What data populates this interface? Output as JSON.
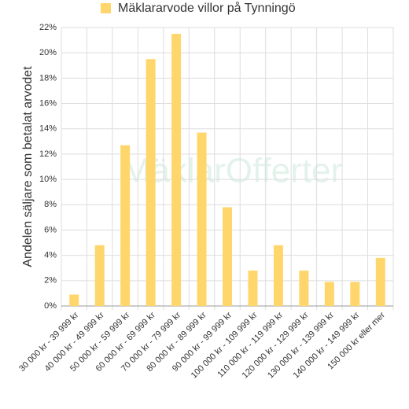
{
  "chart_data": {
    "type": "bar",
    "y_label": "Andelen säljare som betalat arvodet",
    "watermark": "MäklarOfferter",
    "categories": [
      "30 000 kr - 39 999 kr",
      "40 000 kr - 49 999 kr",
      "50 000 kr - 59 999 kr",
      "60 000 kr - 69 999 kr",
      "70 000 kr - 79 999 kr",
      "80 000 kr - 89 999 kr",
      "90 000 kr - 99 999 kr",
      "100 000 kr - 109 999 kr",
      "110 000 kr - 119 999 kr",
      "120 000 kr - 129 999 kr",
      "130 000 kr - 139 999 kr",
      "140 000 kr - 149 999 kr",
      "150 000 kr eller mer"
    ],
    "series": [
      {
        "name": "Mäklararvode villor på Tynningö",
        "color": "#ffd66b",
        "values": [
          0.9,
          4.8,
          12.7,
          19.5,
          21.5,
          13.7,
          7.8,
          2.8,
          4.8,
          2.8,
          1.9,
          1.9,
          3.8
        ]
      }
    ],
    "ylim": [
      0,
      22
    ],
    "yticks": [
      {
        "value": 0,
        "label": "0%"
      },
      {
        "value": 2,
        "label": "2%"
      },
      {
        "value": 4,
        "label": "4%"
      },
      {
        "value": 6,
        "label": "6%"
      },
      {
        "value": 8,
        "label": "8%"
      },
      {
        "value": 10,
        "label": "10%"
      },
      {
        "value": 12,
        "label": "12%"
      },
      {
        "value": 14,
        "label": "14%"
      },
      {
        "value": 16,
        "label": "16%"
      },
      {
        "value": 18,
        "label": "18%"
      },
      {
        "value": 20,
        "label": "20%"
      },
      {
        "value": 22,
        "label": "22%"
      }
    ],
    "grid": true
  }
}
